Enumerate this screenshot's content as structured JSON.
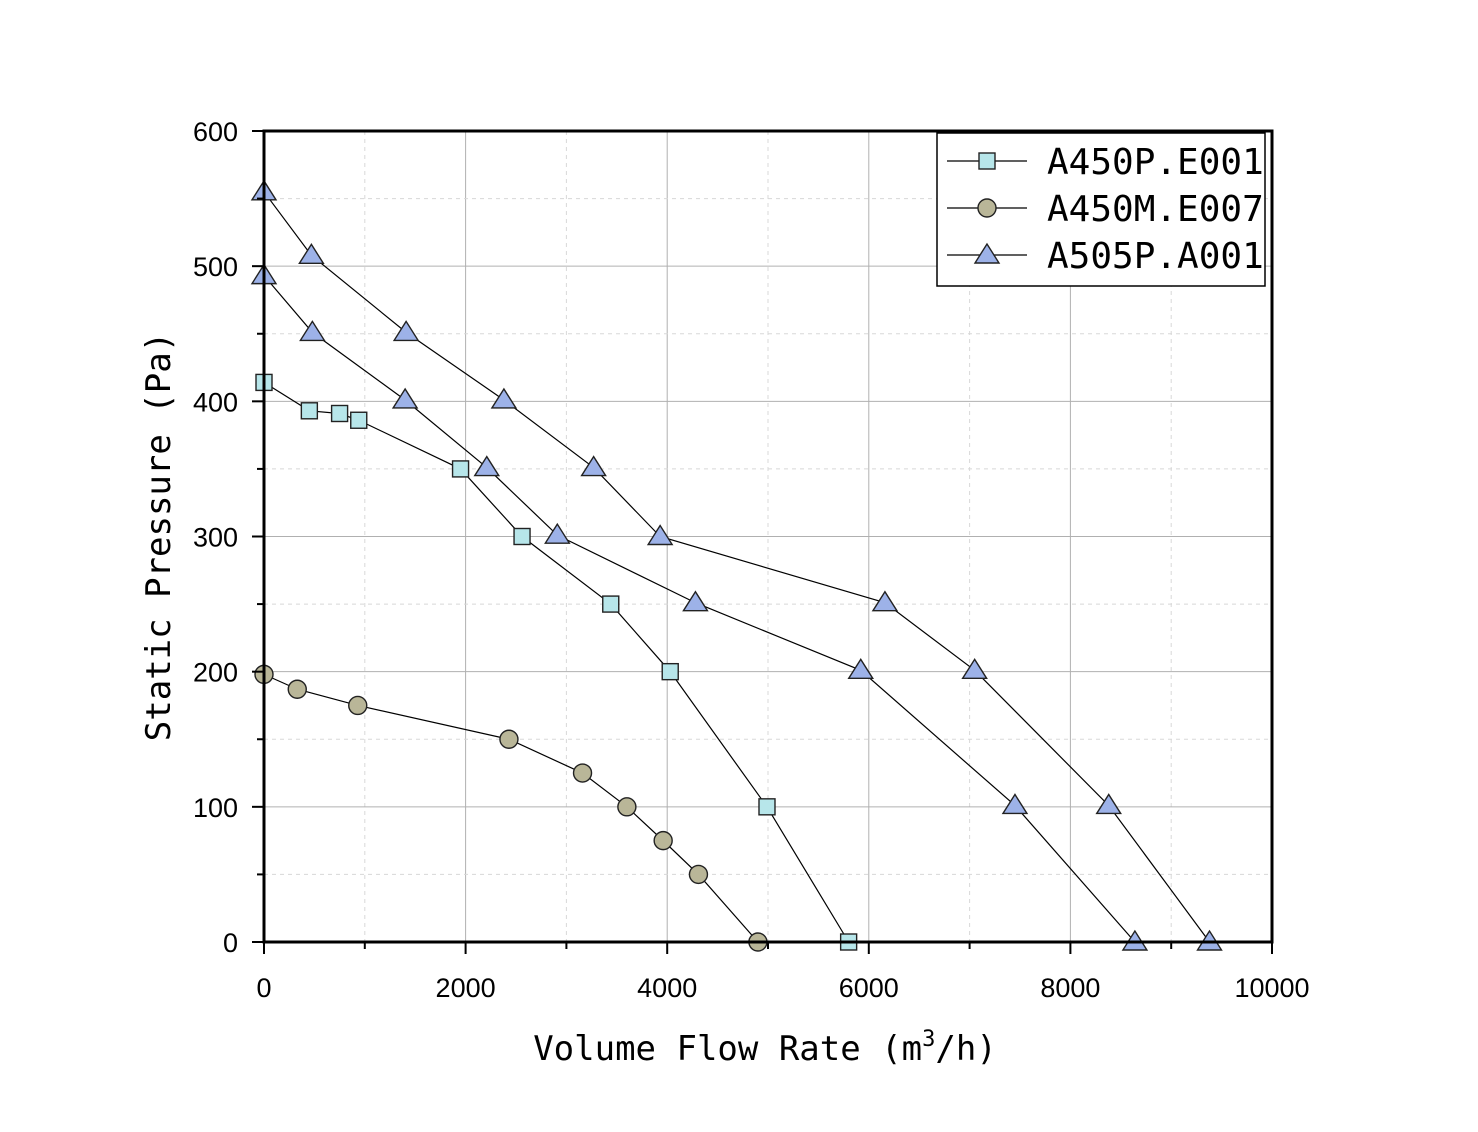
{
  "chart_data": {
    "type": "line",
    "title": "",
    "xlabel_main": "Volume Flow Rate (m",
    "xlabel_sup": "3",
    "xlabel_tail": "/h)",
    "ylabel": "Static Pressure (Pa)",
    "xlim": [
      0,
      10000
    ],
    "ylim": [
      0,
      600
    ],
    "x_ticks": [
      0,
      2000,
      4000,
      6000,
      8000,
      10000
    ],
    "y_ticks": [
      0,
      100,
      200,
      300,
      400,
      500,
      600
    ],
    "x_tick_labels": [
      "0",
      "2000",
      "4000",
      "6000",
      "8000",
      "10000"
    ],
    "y_tick_labels": [
      "0",
      "100",
      "200",
      "300",
      "400",
      "500",
      "600"
    ],
    "grid": true,
    "legend_position": "top-right",
    "series": [
      {
        "name": "A450P.E001",
        "marker": "square",
        "color": "#b7e6ea",
        "points": [
          [
            0,
            414
          ],
          [
            450,
            393
          ],
          [
            750,
            391
          ],
          [
            940,
            386
          ],
          [
            1950,
            350
          ],
          [
            2560,
            300
          ],
          [
            3440,
            250
          ],
          [
            4030,
            200
          ],
          [
            4990,
            100
          ],
          [
            5800,
            0
          ]
        ]
      },
      {
        "name": "A450M.E007",
        "marker": "circle",
        "color": "#b9b698",
        "points": [
          [
            0,
            198
          ],
          [
            330,
            187
          ],
          [
            930,
            175
          ],
          [
            2430,
            150
          ],
          [
            3160,
            125
          ],
          [
            3600,
            100
          ],
          [
            3960,
            75
          ],
          [
            4310,
            50
          ],
          [
            4900,
            0
          ]
        ]
      },
      {
        "name": "A505P.A001",
        "marker": "triangle",
        "color": "#9db2e8",
        "points": [
          [
            0,
            555
          ],
          [
            470,
            508
          ],
          [
            1410,
            451
          ],
          [
            2380,
            401
          ],
          [
            3270,
            351
          ],
          [
            3930,
            300
          ],
          [
            6160,
            251
          ],
          [
            7050,
            201
          ],
          [
            8380,
            101
          ],
          [
            9380,
            0
          ]
        ]
      },
      {
        "name": "",
        "marker": "triangle",
        "color": "#9db2e8",
        "points": [
          [
            0,
            493
          ],
          [
            480,
            451
          ],
          [
            1400,
            401
          ],
          [
            2210,
            351
          ],
          [
            2910,
            301
          ],
          [
            4280,
            251
          ],
          [
            5920,
            201
          ],
          [
            7450,
            101
          ],
          [
            8640,
            0
          ]
        ]
      }
    ]
  }
}
